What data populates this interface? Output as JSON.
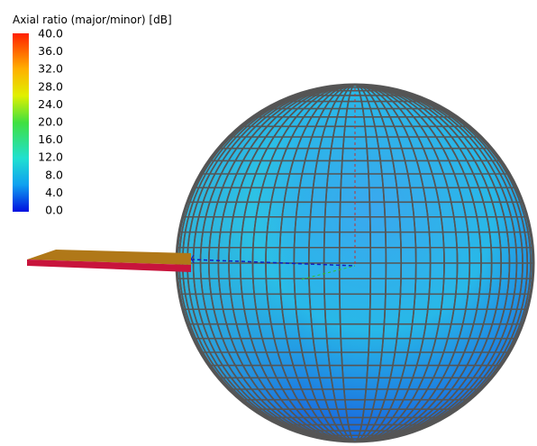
{
  "title": "Axial ratio (major/minor) [dB]",
  "legend": {
    "labels": [
      "40.0",
      "36.0",
      "32.0",
      "28.0",
      "24.0",
      "20.0",
      "16.0",
      "12.0",
      "8.0",
      "4.0",
      "0.0"
    ]
  }
}
